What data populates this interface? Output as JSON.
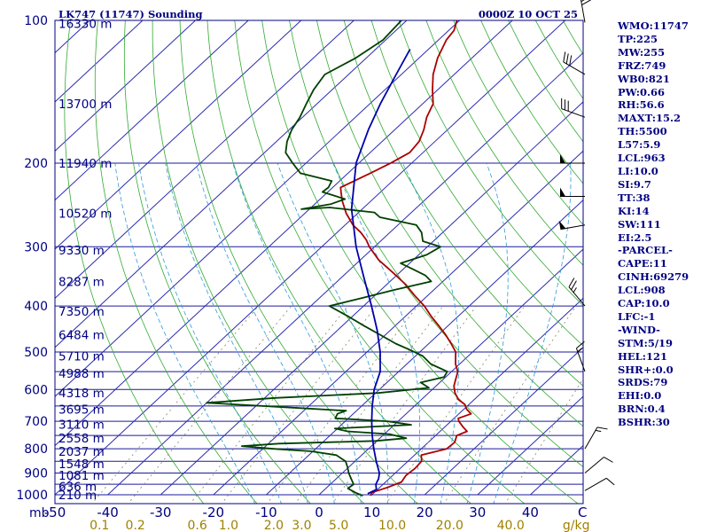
{
  "header": {
    "title": "LK747 (11747) Sounding",
    "valid_time": "0000Z 10 OCT 25"
  },
  "colors": {
    "navy": "#000080",
    "isobar": "#1a1a9a",
    "isotherm": "#2b2bb0",
    "dry_adiabat": "#33aa33",
    "moist_adiabat": "#2e9ad8",
    "mixing_ratio": "#888866",
    "temperature": "#aa0000",
    "dewpoint": "#004000",
    "parcel": "#0000aa",
    "mixing_labels": "#a08000"
  },
  "chart_data": {
    "type": "line",
    "diagram": "skew-T log-P",
    "title": "LK747 (11747) Sounding",
    "subtitle": "0000Z 10 OCT 25",
    "xlabel": "C",
    "ylabel": "mb",
    "xlim": [
      -50,
      50
    ],
    "ylim": [
      1000,
      100
    ],
    "skew_deg_per_log10p": 96.6,
    "pressure_ticks": [
      100,
      200,
      300,
      400,
      500,
      600,
      700,
      800,
      900,
      1000
    ],
    "extra_isobars": [
      550,
      650,
      750,
      850,
      950
    ],
    "temperature_ticks": [
      -50,
      -40,
      -30,
      -20,
      -10,
      0,
      10,
      20,
      30,
      40
    ],
    "temperature_tick_labels": [
      "-50",
      "-40",
      "-30",
      "-20",
      "-10",
      "0",
      "10",
      "20",
      "30",
      "40"
    ],
    "mixing_ratio_labels": [
      "0.1",
      "0.2",
      "0.6",
      "1.0",
      "2.0",
      "3.0",
      "5.0",
      "10.0",
      "20.0",
      "40.0",
      "g/kg"
    ],
    "mixing_ratio_values": [
      0.1,
      0.2,
      0.6,
      1.0,
      2.0,
      3.0,
      5.0,
      10.0,
      20.0,
      40.0
    ],
    "height_labels": [
      {
        "p": 101.5,
        "text": "16330 m"
      },
      {
        "p": 150,
        "text": "13700 m"
      },
      {
        "p": 200,
        "text": "11940 m"
      },
      {
        "p": 255,
        "text": "10520 m"
      },
      {
        "p": 305,
        "text": "9330 m"
      },
      {
        "p": 355,
        "text": "8287 m"
      },
      {
        "p": 410,
        "text": "7350 m"
      },
      {
        "p": 460,
        "text": "6484 m"
      },
      {
        "p": 510,
        "text": "5710 m"
      },
      {
        "p": 555,
        "text": "4988 m"
      },
      {
        "p": 610,
        "text": "4318 m"
      },
      {
        "p": 660,
        "text": "3695 m"
      },
      {
        "p": 710,
        "text": "3110 m"
      },
      {
        "p": 760,
        "text": "2558 m"
      },
      {
        "p": 810,
        "text": "2037 m"
      },
      {
        "p": 860,
        "text": "1548 m"
      },
      {
        "p": 910,
        "text": "1081 m"
      },
      {
        "p": 960,
        "text": "636 m"
      },
      {
        "p": 1000,
        "text": "210 m"
      }
    ],
    "series": [
      {
        "name": "Temperature",
        "points": [
          [
            1005,
            10.0
          ],
          [
            990,
            9.5
          ],
          [
            965,
            11.5
          ],
          [
            940,
            13.0
          ],
          [
            910,
            12.5
          ],
          [
            880,
            12.8
          ],
          [
            850,
            12.6
          ],
          [
            825,
            11.3
          ],
          [
            800,
            14.8
          ],
          [
            775,
            15.0
          ],
          [
            750,
            14.0
          ],
          [
            735,
            15.1
          ],
          [
            720,
            13.5
          ],
          [
            700,
            11.5
          ],
          [
            690,
            10.8
          ],
          [
            675,
            12.3
          ],
          [
            660,
            10.5
          ],
          [
            645,
            9.2
          ],
          [
            630,
            7.0
          ],
          [
            610,
            5.0
          ],
          [
            590,
            3.4
          ],
          [
            570,
            2.3
          ],
          [
            550,
            1.2
          ],
          [
            530,
            -0.8
          ],
          [
            510,
            -2.4
          ],
          [
            500,
            -3.2
          ],
          [
            480,
            -5.8
          ],
          [
            460,
            -8.6
          ],
          [
            440,
            -11.8
          ],
          [
            420,
            -15.2
          ],
          [
            400,
            -18.5
          ],
          [
            380,
            -22.5
          ],
          [
            360,
            -26.5
          ],
          [
            340,
            -31.3
          ],
          [
            320,
            -36.5
          ],
          [
            300,
            -41.0
          ],
          [
            290,
            -43.0
          ],
          [
            280,
            -45.5
          ],
          [
            270,
            -48.5
          ],
          [
            255,
            -52.2
          ],
          [
            240,
            -55.5
          ],
          [
            230,
            -57.5
          ],
          [
            225,
            -58.5
          ],
          [
            210,
            -55.8
          ],
          [
            200,
            -54.0
          ],
          [
            190,
            -52.5
          ],
          [
            180,
            -53.0
          ],
          [
            170,
            -54.5
          ],
          [
            160,
            -56.5
          ],
          [
            150,
            -58.0
          ],
          [
            140,
            -61.0
          ],
          [
            130,
            -64.0
          ],
          [
            120,
            -66.5
          ],
          [
            110,
            -68.5
          ],
          [
            105,
            -69.0
          ],
          [
            100,
            -70.5
          ]
        ]
      },
      {
        "name": "Dewpoint",
        "points": [
          [
            1005,
            8.5
          ],
          [
            990,
            6.5
          ],
          [
            970,
            4.2
          ],
          [
            950,
            4.4
          ],
          [
            925,
            2.8
          ],
          [
            900,
            1.2
          ],
          [
            875,
            -0.2
          ],
          [
            850,
            -1.8
          ],
          [
            825,
            -4.8
          ],
          [
            810,
            -10.3
          ],
          [
            800,
            -18.0
          ],
          [
            790,
            -24.5
          ],
          [
            780,
            -18.0
          ],
          [
            770,
            -0.3
          ],
          [
            760,
            5.0
          ],
          [
            745,
            1.0
          ],
          [
            735,
            -7.5
          ],
          [
            725,
            -10.5
          ],
          [
            712,
            3.2
          ],
          [
            700,
            -2.0
          ],
          [
            690,
            -12.5
          ],
          [
            675,
            -13.0
          ],
          [
            665,
            -12.0
          ],
          [
            655,
            -23.0
          ],
          [
            640,
            -40.0
          ],
          [
            625,
            -28.0
          ],
          [
            610,
            -9.5
          ],
          [
            595,
            -1.0
          ],
          [
            580,
            -3.6
          ],
          [
            565,
            -0.3
          ],
          [
            550,
            -0.8
          ],
          [
            530,
            -5.5
          ],
          [
            510,
            -8.6
          ],
          [
            495,
            -12.3
          ],
          [
            480,
            -16.3
          ],
          [
            460,
            -21.0
          ],
          [
            440,
            -26.0
          ],
          [
            420,
            -31.0
          ],
          [
            400,
            -36.5
          ],
          [
            385,
            -32.0
          ],
          [
            370,
            -27.5
          ],
          [
            355,
            -22.2
          ],
          [
            345,
            -24.5
          ],
          [
            335,
            -28.0
          ],
          [
            325,
            -31.7
          ],
          [
            312,
            -28.5
          ],
          [
            300,
            -27.5
          ],
          [
            292,
            -32.0
          ],
          [
            280,
            -34.0
          ],
          [
            270,
            -36.5
          ],
          [
            260,
            -45.0
          ],
          [
            254,
            -47.0
          ],
          [
            248,
            -56.5
          ],
          [
            250,
            -61.5
          ],
          [
            244,
            -57.0
          ],
          [
            238,
            -55.3
          ],
          [
            230,
            -61.0
          ],
          [
            225,
            -60.8
          ],
          [
            218,
            -61.5
          ],
          [
            210,
            -69.0
          ],
          [
            200,
            -72.5
          ],
          [
            190,
            -76.0
          ],
          [
            180,
            -78.0
          ],
          [
            170,
            -79.5
          ],
          [
            160,
            -80.5
          ],
          [
            150,
            -82.0
          ],
          [
            140,
            -83.5
          ],
          [
            130,
            -84.5
          ],
          [
            120,
            -82.0
          ],
          [
            110,
            -80.5
          ],
          [
            100,
            -81.0
          ]
        ]
      },
      {
        "name": "Parcel",
        "points": [
          [
            995,
            9.0
          ],
          [
            975,
            9.8
          ],
          [
            950,
            8.6
          ],
          [
            925,
            8.0
          ],
          [
            900,
            7.0
          ],
          [
            850,
            4.0
          ],
          [
            800,
            1.0
          ],
          [
            750,
            -2.0
          ],
          [
            700,
            -5.0
          ],
          [
            650,
            -8.0
          ],
          [
            600,
            -11.0
          ],
          [
            550,
            -13.5
          ],
          [
            500,
            -17.5
          ],
          [
            450,
            -22.5
          ],
          [
            400,
            -28.5
          ],
          [
            350,
            -35.5
          ],
          [
            300,
            -43.5
          ],
          [
            250,
            -52.0
          ],
          [
            200,
            -60.5
          ],
          [
            170,
            -65.0
          ],
          [
            150,
            -68.0
          ],
          [
            130,
            -71.0
          ],
          [
            115,
            -73.5
          ]
        ]
      }
    ],
    "wind_barbs": [
      {
        "p": 101,
        "dir": 350,
        "kt": 30
      },
      {
        "p": 130,
        "dir": 300,
        "kt": 30
      },
      {
        "p": 160,
        "dir": 290,
        "kt": 30
      },
      {
        "p": 200,
        "dir": 270,
        "kt": 50
      },
      {
        "p": 235,
        "dir": 270,
        "kt": 50
      },
      {
        "p": 270,
        "dir": 260,
        "kt": 50
      },
      {
        "p": 400,
        "dir": 320,
        "kt": 25
      },
      {
        "p": 550,
        "dir": 340,
        "kt": 15
      },
      {
        "p": 800,
        "dir": 30,
        "kt": 15
      },
      {
        "p": 900,
        "dir": 50,
        "kt": 10
      },
      {
        "p": 980,
        "dir": 60,
        "kt": 10
      }
    ]
  },
  "indices": [
    "WMO:11747",
    "TP:225",
    "MW:255",
    "FRZ:749",
    "WB0:821",
    "PW:0.66",
    "RH:56.6",
    "MAXT:15.2",
    "TH:5500",
    "L57:5.9",
    "LCL:963",
    "LI:10.0",
    "SI:9.7",
    "TT:38",
    "KI:14",
    "SW:111",
    "EI:2.5",
    "-PARCEL-",
    "CAPE:11",
    "CINH:69279",
    "LCL:908",
    "CAP:10.0",
    "LFC:-1",
    "-WIND-",
    "STM:5/19",
    "HEL:121",
    "SHR+:0.0",
    "SRDS:79",
    "EHI:0.0",
    "BRN:0.4",
    "BSHR:30"
  ]
}
